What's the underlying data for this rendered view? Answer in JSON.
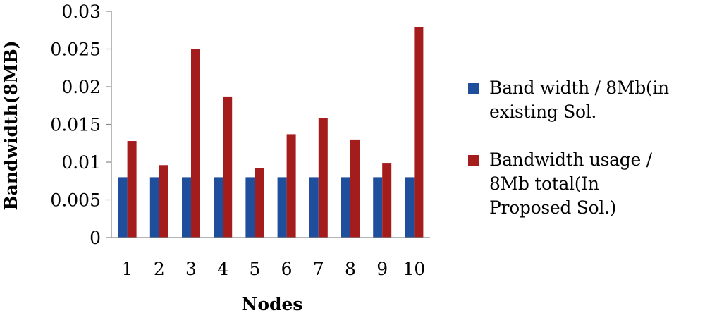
{
  "chart_data": {
    "type": "bar",
    "title": "",
    "xlabel": "Nodes",
    "ylabel": "Bandwidth(8MB)",
    "ylim": [
      0,
      0.03
    ],
    "yticks": [
      "0",
      "0.005",
      "0.01",
      "0.015",
      "0.02",
      "0.025",
      "0.03"
    ],
    "grid": false,
    "legend_position": "right",
    "categories": [
      "1",
      "2",
      "3",
      "4",
      "5",
      "6",
      "7",
      "8",
      "9",
      "10"
    ],
    "series": [
      {
        "name": "Band width / 8Mb(in existing Sol.",
        "legend_lines": [
          "Band width / 8Mb(in",
          "existing Sol."
        ],
        "color": "#1f4e9c",
        "values": [
          0.008,
          0.008,
          0.008,
          0.008,
          0.008,
          0.008,
          0.008,
          0.008,
          0.008,
          0.008
        ]
      },
      {
        "name": "Bandwidth usage / 8Mb total(In Proposed Sol.)",
        "legend_lines": [
          "Bandwidth usage /",
          "8Mb total(In",
          "Proposed Sol.)"
        ],
        "color": "#a51c1c",
        "values": [
          0.0128,
          0.0096,
          0.025,
          0.0187,
          0.0092,
          0.0137,
          0.0158,
          0.013,
          0.0099,
          0.0279
        ]
      }
    ]
  }
}
